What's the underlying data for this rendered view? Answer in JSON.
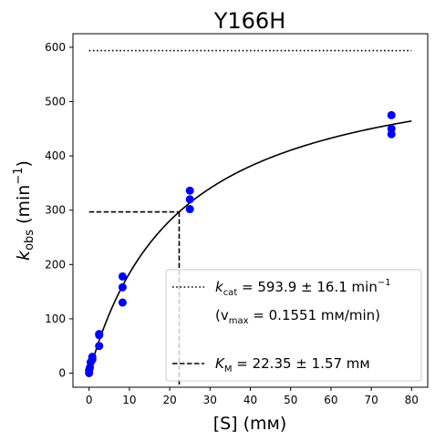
{
  "chart_data": {
    "type": "scatter",
    "title": "Y166H",
    "xlabel": "[S] (mм)",
    "ylabel": {
      "main": "k",
      "sub": "obs",
      "unit_open": " (min",
      "sup": "−1",
      "unit_close": ")"
    },
    "xlim": [
      -4,
      84
    ],
    "ylim": [
      -26,
      625
    ],
    "xticks": [
      0,
      10,
      20,
      30,
      40,
      50,
      60,
      70,
      80
    ],
    "yticks": [
      0,
      100,
      200,
      300,
      400,
      500,
      600
    ],
    "grid": false,
    "legend_position": "lower-right",
    "colors": {
      "points": "#0000ff",
      "fit": "#000000",
      "lines": "#000000"
    },
    "series": [
      {
        "kind": "points",
        "x": [
          0,
          0,
          0.2,
          0.4,
          0.8,
          0.8,
          2.5,
          2.5,
          2.5,
          8.3,
          8.3,
          8.3,
          25,
          25,
          25,
          75,
          75,
          75
        ],
        "y": [
          0,
          5,
          10,
          20,
          25,
          30,
          50,
          70,
          72,
          130,
          158,
          178,
          302,
          320,
          336,
          440,
          450,
          475
        ]
      },
      {
        "kind": "fit",
        "equation": "vmax*S/(KM+S)",
        "x_range": [
          0,
          80
        ],
        "params": {
          "kcat": 593.9,
          "KM": 22.35
        }
      }
    ],
    "reference_lines": {
      "kcat_y": 593.9,
      "half_y": 296.95,
      "km_x": 22.35
    },
    "legend": [
      {
        "style": "dotted",
        "label_var": "k",
        "label_sub": "cat",
        "label_rest": " = 593.9 ± 16.1 min",
        "label_sup": "−1"
      },
      {
        "style": "none",
        "label_text": "(v",
        "label_sub": "max",
        "label_rest": " = 0.1551 mм/min)"
      },
      {
        "style": "dashed",
        "label_var": "K",
        "label_sub": "M",
        "label_rest": " = 22.35 ± 1.57 mм"
      }
    ]
  }
}
